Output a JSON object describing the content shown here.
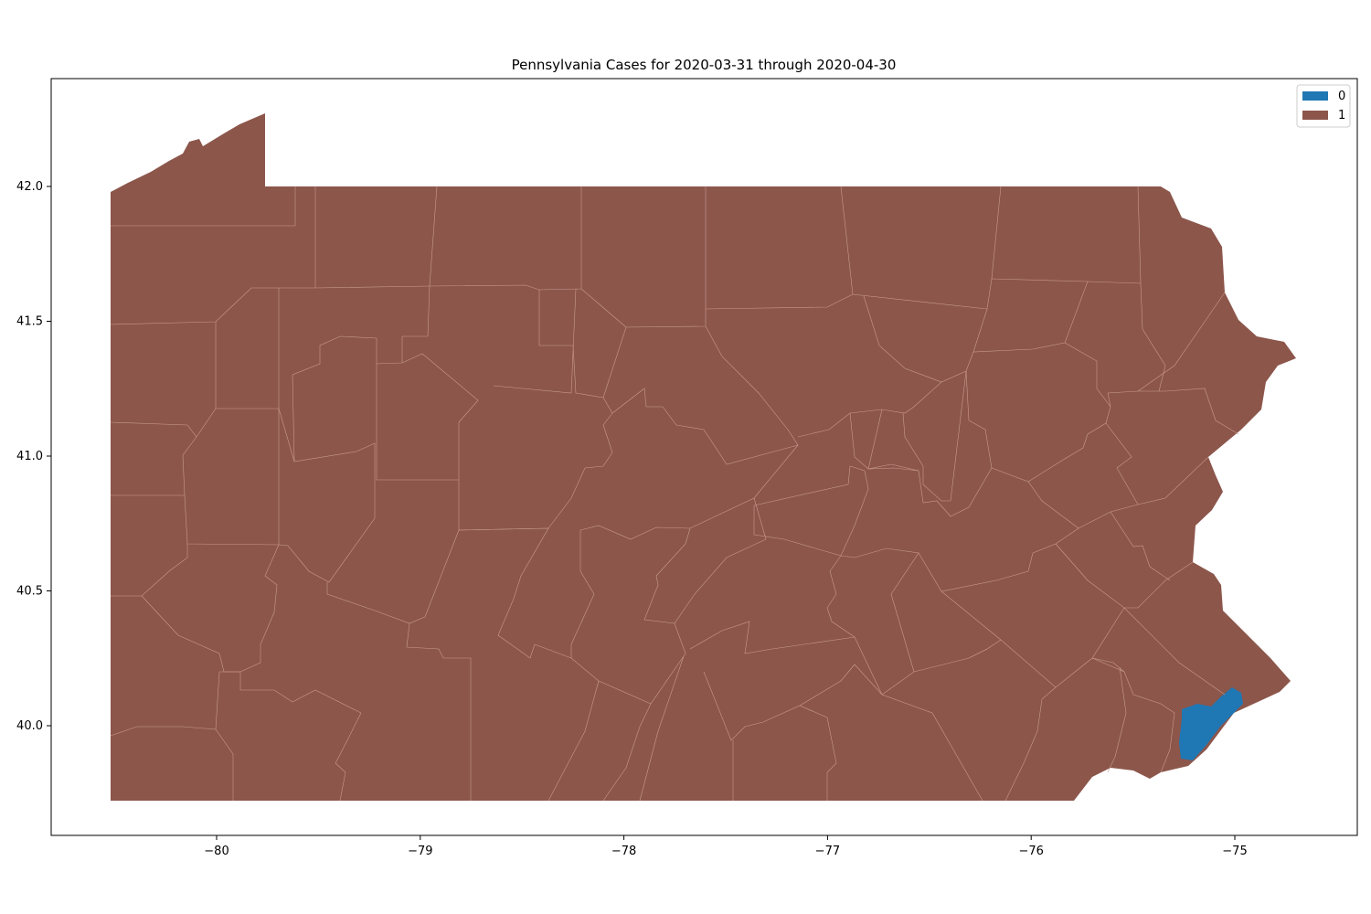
{
  "title": "Pennsylvania Cases for 2020-03-31 through 2020-04-30",
  "colors": {
    "category_0": "#1f77b4",
    "category_1": "#8c564b",
    "border": "#c99b8e"
  },
  "legend": [
    {
      "label": "0",
      "color": "#1f77b4"
    },
    {
      "label": "1",
      "color": "#8c564b"
    }
  ],
  "chart_data": {
    "type": "choropleth",
    "title": "Pennsylvania Cases for 2020-03-31 through 2020-04-30",
    "xlabel": "",
    "ylabel": "",
    "x_ticks": [
      -80,
      -79,
      -78,
      -77,
      -76,
      -75
    ],
    "y_ticks": [
      40.0,
      40.5,
      41.0,
      41.5,
      42.0
    ],
    "x_tick_labels": [
      "−80",
      "−79",
      "−78",
      "−77",
      "−76",
      "−75"
    ],
    "y_tick_labels": [
      "40.0",
      "40.5",
      "41.0",
      "41.5",
      "42.0"
    ],
    "xlim": [
      -80.8,
      -74.4
    ],
    "ylim": [
      39.6,
      42.4
    ],
    "categories": [
      "0",
      "1"
    ],
    "regions": {
      "category_0": "Philadelphia County",
      "category_1": "all other counties"
    }
  }
}
